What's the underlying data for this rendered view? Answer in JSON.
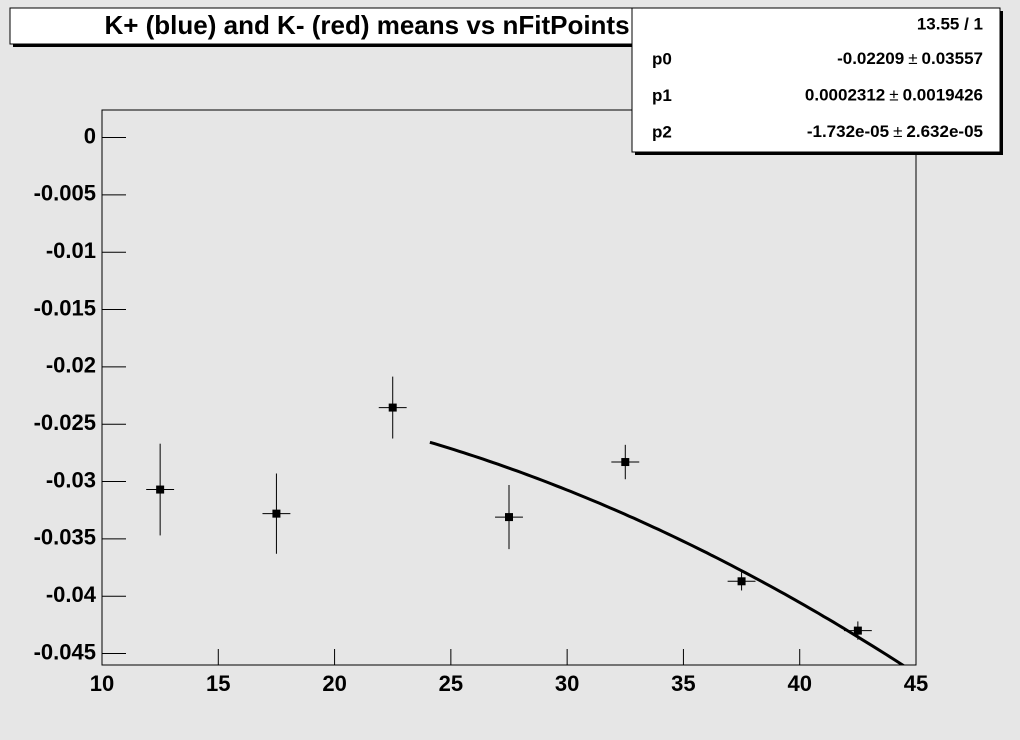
{
  "chart_data": {
    "type": "scatter",
    "title": "K+ (blue) and K- (red) means vs nFitPoints",
    "x": [
      12.5,
      17.5,
      22.5,
      27.5,
      32.5,
      37.5,
      42.5
    ],
    "values": [
      -0.0307,
      -0.0328,
      -0.02355,
      -0.0331,
      -0.0283,
      -0.0387,
      -0.043
    ],
    "yerr": [
      0.004,
      0.0035,
      0.0027,
      0.0028,
      0.0015,
      0.0008,
      0.0008
    ],
    "xerr": [
      0.6,
      0.6,
      0.6,
      0.6,
      0.6,
      0.6,
      0.6
    ],
    "color": "#000000",
    "xlim": [
      10,
      45
    ],
    "xticks": [
      10,
      15,
      20,
      25,
      30,
      35,
      40,
      45
    ],
    "ylim": [
      -0.046,
      0.0024
    ],
    "yticks": [
      0,
      -0.005,
      -0.01,
      -0.015,
      -0.02,
      -0.025,
      -0.03,
      -0.035,
      -0.04,
      -0.045
    ],
    "fit": {
      "range": [
        24.1,
        45
      ]
    },
    "stats": {
      "chi2_ndf": "13.55 / 1",
      "pm": "±",
      "params": [
        {
          "name": "p0",
          "value": -0.02209,
          "error": 0.03557
        },
        {
          "name": "p1",
          "value": 0.0002312,
          "error": 0.0019426
        },
        {
          "name": "p2",
          "value": {
            "value": -1.732e-05,
            "label": "-1.732e-05"
          },
          "error": {
            "value": 2.632e-05,
            "label": "2.632e-05"
          }
        }
      ]
    }
  }
}
